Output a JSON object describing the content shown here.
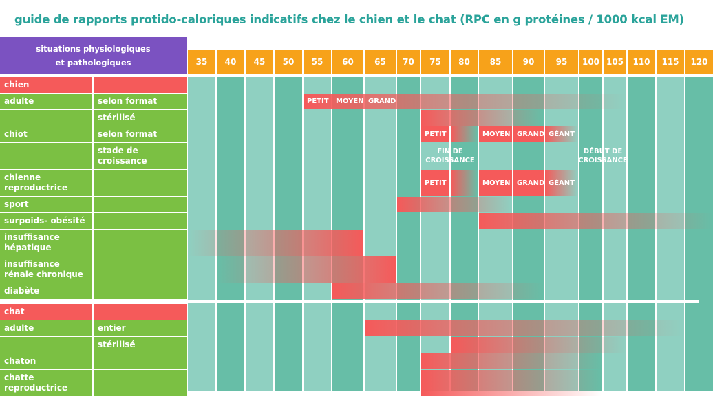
{
  "title": "guide de rapports protido-caloriques indicatifs chez le chien et le chat (RPC en g protéines / 1000 kcal EM)",
  "header": {
    "line1": "situations physiologiques",
    "line2": "et pathologiques"
  },
  "colors": {
    "title": "#2aa39a",
    "header": "#7b52c1",
    "scale": "#f7a21a",
    "section": "#f55a5a",
    "row": "#7bc043",
    "col_dark": "#67bea7",
    "col_light": "#8fd0c1",
    "bar": "#f55a5a"
  },
  "chart_data": {
    "type": "table",
    "title": "guide de rapports protido-caloriques indicatifs chez le chien et le chat (RPC en g protéines / 1000 kcal EM)",
    "x_ticks": [
      "35",
      "40",
      "45",
      "50",
      "55",
      "60",
      "65",
      "70",
      "75",
      "80",
      "85",
      "90",
      "95",
      "100",
      "105",
      "110",
      "115",
      "120"
    ],
    "rows": [
      {
        "label": "chien",
        "sub": "",
        "section": true
      },
      {
        "label": "adulte",
        "sub": "selon format",
        "bars": [
          {
            "from": "55",
            "to": "105",
            "fade": "right",
            "labels": [
              {
                "text": "PETIT",
                "at": "55",
                "anchor": "start"
              },
              {
                "text": "MOYEN",
                "at": "60",
                "anchor": "start"
              },
              {
                "text": "GRAND",
                "at": "65",
                "anchor": "start"
              }
            ]
          }
        ]
      },
      {
        "label": "",
        "sub": "stérilisé",
        "bars": [
          {
            "from": "75",
            "to": "90",
            "fade": "right"
          }
        ]
      },
      {
        "label": "chiot",
        "sub": "selon format",
        "bars": [
          {
            "from": "75",
            "to": "75",
            "fade": "none",
            "labels": [
              {
                "text": "PETIT",
                "at": "75",
                "anchor": "start"
              }
            ]
          },
          {
            "from": "80",
            "to": "80",
            "fade": "right"
          },
          {
            "from": "85",
            "to": "85",
            "fade": "none",
            "labels": [
              {
                "text": "MOYEN",
                "at": "85",
                "anchor": "start"
              }
            ]
          },
          {
            "from": "90",
            "to": "90",
            "fade": "none",
            "labels": [
              {
                "text": "GRAND",
                "at": "90",
                "anchor": "start"
              }
            ]
          },
          {
            "from": "95",
            "to": "95",
            "fade": "right",
            "labels": [
              {
                "text": "GÉANT",
                "at": "95",
                "anchor": "start"
              }
            ]
          }
        ]
      },
      {
        "label": "",
        "sub": "stade de croissance",
        "notes": [
          {
            "line1": "FIN DE",
            "line2": "CROISSANCE",
            "at": "75"
          },
          {
            "line1": "DÉBUT DE",
            "line2": "CROISSANCE",
            "at": "100"
          }
        ]
      },
      {
        "label": "chienne reproductrice",
        "sub": "",
        "bars": [
          {
            "from": "75",
            "to": "75",
            "fade": "none",
            "labels": [
              {
                "text": "PETIT",
                "at": "75",
                "anchor": "start"
              }
            ]
          },
          {
            "from": "80",
            "to": "80",
            "fade": "right"
          },
          {
            "from": "85",
            "to": "85",
            "fade": "none",
            "labels": [
              {
                "text": "MOYEN",
                "at": "85",
                "anchor": "start"
              }
            ]
          },
          {
            "from": "90",
            "to": "90",
            "fade": "none",
            "labels": [
              {
                "text": "GRAND",
                "at": "90",
                "anchor": "start"
              }
            ]
          },
          {
            "from": "95",
            "to": "95",
            "fade": "right",
            "labels": [
              {
                "text": "GÉANT",
                "at": "95",
                "anchor": "start"
              }
            ]
          }
        ]
      },
      {
        "label": "sport",
        "sub": "",
        "bars": [
          {
            "from": "70",
            "to": "85",
            "fade": "right"
          }
        ]
      },
      {
        "label": "surpoids- obésité",
        "sub": "",
        "bars": [
          {
            "from": "85",
            "to": "120",
            "fade": "right"
          }
        ]
      },
      {
        "label": "insuffisance hépatique",
        "sub": "",
        "bars": [
          {
            "from": "35",
            "to": "60",
            "fade": "left"
          }
        ]
      },
      {
        "label": "insuffisance rénale chronique",
        "sub": "",
        "bars": [
          {
            "from": "40",
            "to": "65",
            "fade": "left"
          }
        ]
      },
      {
        "label": "diabète",
        "sub": "",
        "bars": [
          {
            "from": "60",
            "to": "90",
            "fade": "right"
          }
        ]
      },
      {
        "label": "chat",
        "sub": "",
        "section": true
      },
      {
        "label": "adulte",
        "sub": "entier",
        "bars": [
          {
            "from": "65",
            "to": "115",
            "fade": "right"
          }
        ]
      },
      {
        "label": "",
        "sub": "stérilisé",
        "bars": [
          {
            "from": "80",
            "to": "105",
            "fade": "right"
          }
        ]
      },
      {
        "label": "chaton",
        "sub": "",
        "bars": [
          {
            "from": "75",
            "to": "100",
            "fade": "right"
          }
        ]
      },
      {
        "label": "chatte reproductrice",
        "sub": "",
        "bars": [
          {
            "from": "75",
            "to": "100",
            "fade": "right"
          }
        ]
      }
    ]
  }
}
